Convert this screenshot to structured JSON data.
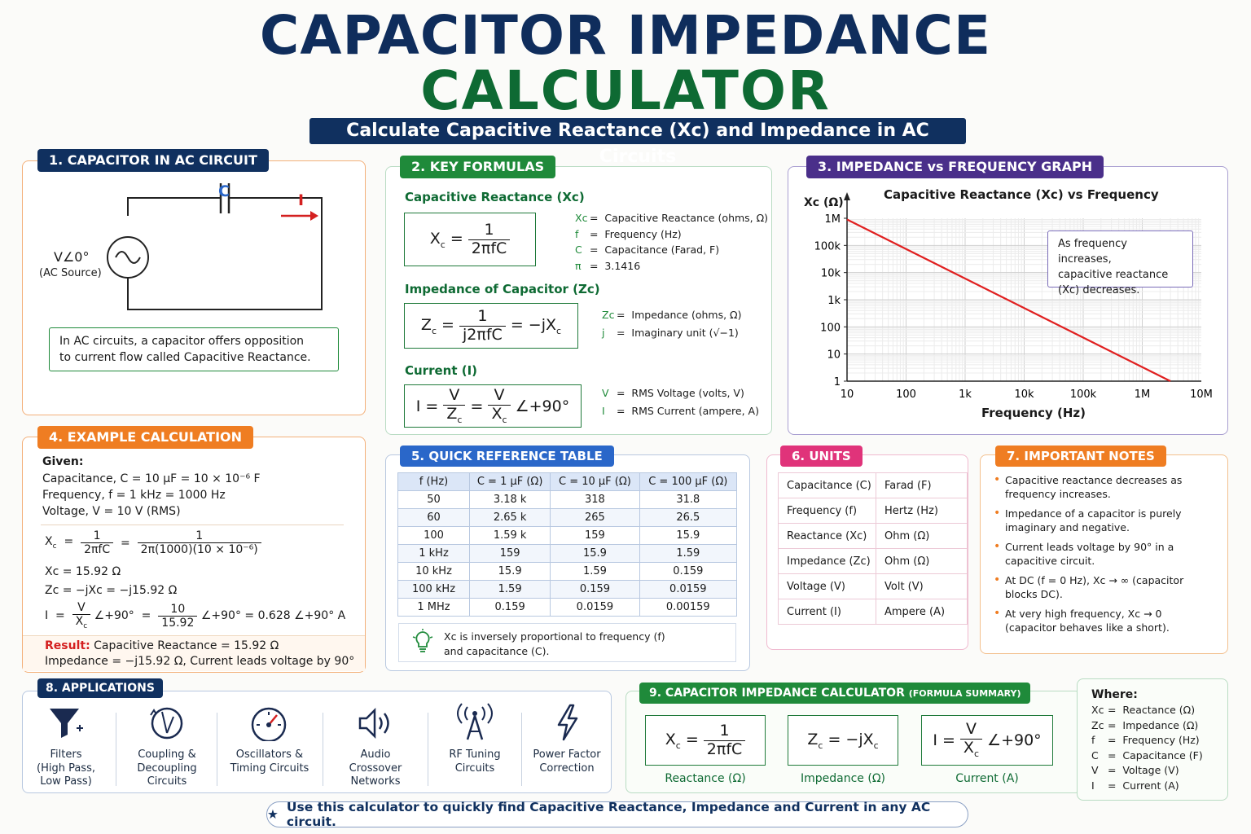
{
  "header": {
    "title_line1": "CAPACITOR IMPEDANCE",
    "title_line2": "CALCULATOR",
    "subtitle": "Calculate Capacitive Reactance (Xc) and Impedance in AC Circuits"
  },
  "colors": {
    "navy": "#10305f",
    "green": "#1f8a3a",
    "purple": "#4a2f8a",
    "orange": "#ef7d22",
    "blue": "#2a67c9",
    "pink": "#e0337a",
    "red": "#e02020"
  },
  "section1": {
    "title": "1. CAPACITOR IN AC CIRCUIT",
    "cap_label": "C",
    "current_label": "I",
    "source_label": "V∠0°",
    "source_caption": "(AC Source)",
    "note_line1": "In AC circuits, a capacitor offers opposition",
    "note_line2": "to current flow called Capacitive Reactance."
  },
  "section2": {
    "title": "2. KEY FORMULAS",
    "reactance_heading": "Capacitive Reactance (Xc)",
    "impedance_heading": "Impedance of Capacitor (Zc)",
    "current_heading": "Current (I)",
    "reactance_defs": [
      {
        "sym": "Xc",
        "text": "Capacitive Reactance (ohms, Ω)"
      },
      {
        "sym": "f",
        "text": "Frequency (Hz)"
      },
      {
        "sym": "C",
        "text": "Capacitance (Farad, F)"
      },
      {
        "sym": "π",
        "text": "3.1416"
      }
    ],
    "impedance_defs": [
      {
        "sym": "Zc",
        "text": "Impedance (ohms, Ω)"
      },
      {
        "sym": "j",
        "text": "Imaginary unit (√−1)"
      }
    ],
    "current_defs": [
      {
        "sym": "V",
        "text": "RMS Voltage (volts, V)"
      },
      {
        "sym": "I",
        "text": "RMS Current (ampere, A)"
      }
    ]
  },
  "section3": {
    "title": "3. IMPEDANCE vs FREQUENCY GRAPH",
    "callout": [
      "As frequency increases,",
      "capacitive reactance",
      "(Xc) decreases."
    ]
  },
  "chart_data": {
    "type": "line",
    "title": "Capacitive Reactance (Xc) vs Frequency",
    "xlabel": "Frequency (Hz)",
    "ylabel": "Xc (Ω)",
    "x_scale": "log",
    "y_scale": "log",
    "xlim": [
      10,
      10000000
    ],
    "ylim": [
      1,
      1000000
    ],
    "x_ticks": [
      "10",
      "100",
      "1k",
      "10k",
      "100k",
      "1M",
      "10M"
    ],
    "y_ticks": [
      "1",
      "10",
      "100",
      "1k",
      "10k",
      "100k",
      "1M"
    ],
    "grid": true,
    "series": [
      {
        "x": [
          10,
          3000000
        ],
        "y": [
          900000,
          1
        ],
        "color": "#e02020"
      }
    ]
  },
  "section4": {
    "title": "4. EXAMPLE CALCULATION",
    "given_label": "Given:",
    "given": [
      "Capacitance, C  =  10 μF  =  10 × 10⁻⁶ F",
      "Frequency, f  =  1 kHz  =  1000 Hz",
      "Voltage, V  =  10 V (RMS)"
    ],
    "step1_rhs_den": "2π(1000)(10 × 10⁻⁶)",
    "step2": "Xc  =  15.92 Ω",
    "step3": "Zc  =  −jXc  =  −j15.92 Ω",
    "step4_num": "10",
    "step4_den": "15.92",
    "step4_result": "∠+90°  =  0.628 ∠+90° A",
    "result_label": "Result:",
    "result_line1": "Capacitive Reactance = 15.92 Ω",
    "result_line2": "Impedance = −j15.92 Ω, Current leads voltage by 90°"
  },
  "section5": {
    "title": "5. QUICK REFERENCE TABLE",
    "headers": [
      "f (Hz)",
      "C = 1 μF (Ω)",
      "C = 10 μF (Ω)",
      "C = 100 μF (Ω)"
    ],
    "rows": [
      [
        "50",
        "3.18 k",
        "318",
        "31.8"
      ],
      [
        "60",
        "2.65 k",
        "265",
        "26.5"
      ],
      [
        "100",
        "1.59 k",
        "159",
        "15.9"
      ],
      [
        "1 kHz",
        "159",
        "15.9",
        "1.59"
      ],
      [
        "10 kHz",
        "15.9",
        "1.59",
        "0.159"
      ],
      [
        "100 kHz",
        "1.59",
        "0.159",
        "0.0159"
      ],
      [
        "1 MHz",
        "0.159",
        "0.0159",
        "0.00159"
      ]
    ],
    "tip_line1": "Xc is inversely proportional to frequency (f)",
    "tip_line2": "and capacitance (C)."
  },
  "section6": {
    "title": "6. UNITS",
    "rows": [
      [
        "Capacitance (C)",
        "Farad (F)"
      ],
      [
        "Frequency (f)",
        "Hertz (Hz)"
      ],
      [
        "Reactance (Xc)",
        "Ohm (Ω)"
      ],
      [
        "Impedance (Zc)",
        "Ohm (Ω)"
      ],
      [
        "Voltage (V)",
        "Volt (V)"
      ],
      [
        "Current (I)",
        "Ampere (A)"
      ]
    ]
  },
  "section7": {
    "title": "7. IMPORTANT NOTES",
    "notes": [
      "Capacitive reactance decreases as frequency increases.",
      "Impedance of a capacitor is purely imaginary and negative.",
      "Current leads voltage by 90° in a capacitive circuit.",
      "At DC (f = 0 Hz), Xc → ∞ (capacitor blocks DC).",
      "At very high frequency, Xc → 0 (capacitor behaves like a short)."
    ]
  },
  "section8": {
    "title": "8. APPLICATIONS",
    "apps": [
      {
        "icon": "funnel-filter-icon",
        "lines": [
          "Filters",
          "(High Pass,",
          "Low Pass)"
        ]
      },
      {
        "icon": "coupling-icon",
        "lines": [
          "Coupling &",
          "Decoupling",
          "Circuits"
        ]
      },
      {
        "icon": "gauge-icon",
        "lines": [
          "Oscillators &",
          "Timing Circuits"
        ]
      },
      {
        "icon": "speaker-icon",
        "lines": [
          "Audio",
          "Crossover",
          "Networks"
        ]
      },
      {
        "icon": "antenna-icon",
        "lines": [
          "RF Tuning",
          "Circuits"
        ]
      },
      {
        "icon": "lightning-icon",
        "lines": [
          "Power Factor",
          "Correction"
        ]
      }
    ]
  },
  "section9": {
    "title": "9. CAPACITOR IMPEDANCE CALCULATOR",
    "title_suffix": "(FORMULA SUMMARY)",
    "captions": [
      "Reactance (Ω)",
      "Impedance (Ω)",
      "Current (A)"
    ],
    "where_label": "Where:",
    "where": [
      {
        "sym": "Xc",
        "text": "Reactance (Ω)"
      },
      {
        "sym": "Zc",
        "text": "Impedance (Ω)"
      },
      {
        "sym": "f",
        "text": "Frequency (Hz)"
      },
      {
        "sym": "C",
        "text": "Capacitance (F)"
      },
      {
        "sym": "V",
        "text": "Voltage (V)"
      },
      {
        "sym": "I",
        "text": "Current (A)"
      }
    ]
  },
  "footer": {
    "text": "Use this calculator to quickly find Capacitive Reactance, Impedance and Current in any AC circuit."
  }
}
